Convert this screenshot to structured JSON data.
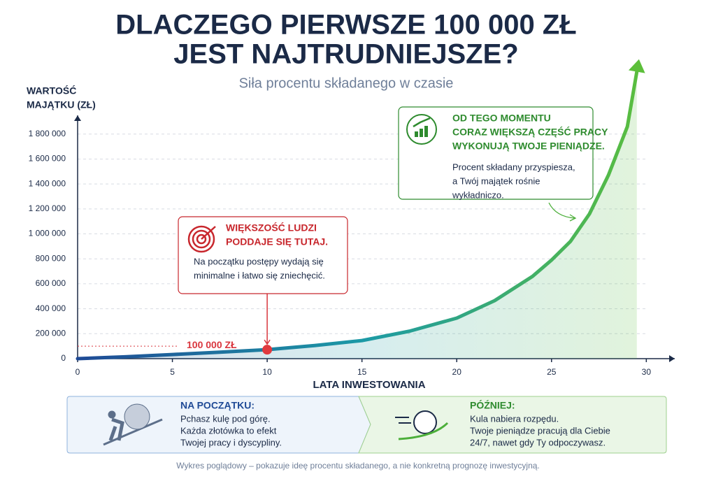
{
  "chart_data": {
    "type": "line",
    "title": [
      "DLACZEGO PIERWSZE 100 000 ZŁ",
      "JEST NAJTRUDNIEJSZE?"
    ],
    "subtitle": "Siła procentu składanego w czasie",
    "y_label": [
      "WARTOŚĆ",
      "MAJĄTKU (ZŁ)"
    ],
    "x_label": "LATA INWESTOWANIA",
    "x": [
      0,
      2.5,
      5,
      7.5,
      10,
      12.5,
      15,
      17.5,
      20,
      22,
      24,
      25,
      26,
      27,
      28,
      29,
      29.5
    ],
    "values": [
      0,
      15000,
      33000,
      52000,
      72000,
      105000,
      145000,
      220000,
      325000,
      465000,
      660000,
      790000,
      940000,
      1160000,
      1470000,
      1860000,
      2300000
    ],
    "colors": [
      "#1f4a96",
      "#1c9aa6",
      "#5cbf3a"
    ],
    "xlim": [
      0,
      31.5
    ],
    "xticks": [
      0,
      5,
      10,
      15,
      20,
      25,
      30
    ],
    "ylim": [
      0,
      1950000
    ],
    "yticks": [
      0,
      {
        "value": 200000,
        "label": "200 000"
      },
      {
        "value": 400000,
        "label": "400 000"
      },
      {
        "value": 600000,
        "label": "600 000"
      },
      {
        "value": 800000,
        "label": "800 000"
      },
      {
        "value": 1000000,
        "label": "1 000 000"
      },
      {
        "value": 1200000,
        "label": "1 200 000"
      },
      {
        "value": 1400000,
        "label": "1 400 000"
      },
      {
        "value": 1600000,
        "label": "1 600 000"
      },
      {
        "value": 1800000,
        "label": "1 800 000"
      }
    ],
    "grid": true,
    "reference_line": {
      "value": 100000,
      "label": "100 000 ZŁ",
      "x": 10
    },
    "callouts": [
      {
        "title": [
          "WIĘKSZOŚĆ LUDZI",
          "PODDAJE SIĘ TUTAJ."
        ],
        "text": [
          "Na początku postępy wydają się",
          "minimalne i łatwo się zniechęcić."
        ],
        "color": "#c8272d"
      },
      {
        "title": [
          "OD TEGO MOMENTU",
          "CORAZ WIĘKSZĄ CZĘŚĆ PRACY",
          "WYKONUJĄ TWOJE PIENIĄDZE."
        ],
        "text": [
          "Procent składany przyspiesza,",
          "a Twój majątek rośnie",
          "wykładniczo."
        ],
        "color": "#2e8b2e"
      }
    ]
  },
  "panels": [
    {
      "title": "NA POCZĄTKU:",
      "text": [
        "Pchasz kulę pod górę.",
        "Każda złotówka to efekt",
        "Twojej pracy i dyscypliny."
      ]
    },
    {
      "title": "PÓŹNIEJ:",
      "text": [
        "Kula nabiera rozpędu.",
        "Twoje pieniądze pracują dla Ciebie",
        "24/7, nawet gdy Ty odpoczywasz."
      ]
    }
  ],
  "footnote": "Wykres poglądowy – pokazuje ideę procentu składanego, a nie konkretną prognozę inwestycyjną."
}
